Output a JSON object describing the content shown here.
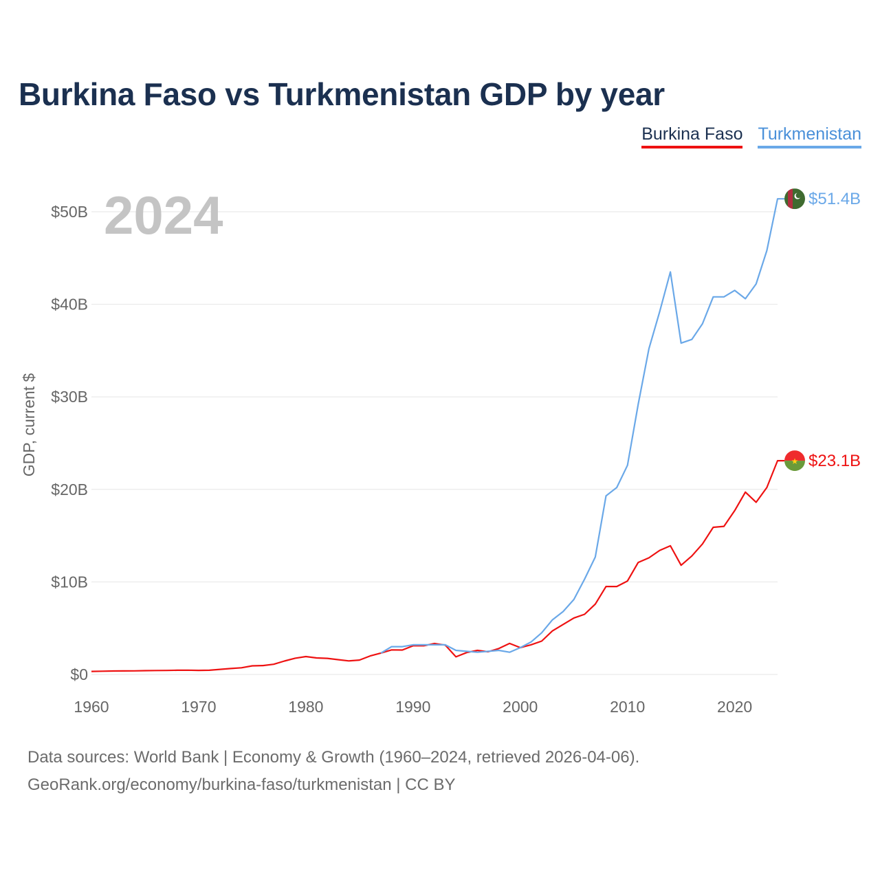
{
  "title": "Burkina Faso vs Turkmenistan GDP by year",
  "legend": {
    "burkina_faso": "Burkina Faso",
    "turkmenistan": "Turkmenistan"
  },
  "footer": {
    "line1": "Data sources: World Bank | Economy & Growth (1960–2024, retrieved 2026-04-06).",
    "line2": "GeoRank.org/economy/burkina-faso/turkmenistan | CC BY"
  },
  "colors": {
    "burkina_faso": "#ee1111",
    "turkmenistan": "#6aa8e8",
    "title": "#1b3050",
    "grid": "#e6e6e6"
  },
  "chart_data": {
    "type": "line",
    "title": "Burkina Faso vs Turkmenistan GDP by year",
    "xlabel": "",
    "ylabel": "GDP, current $",
    "current_year": "2024",
    "xlim": [
      1960,
      2024
    ],
    "ylim": [
      0,
      50
    ],
    "x_ticks": [
      1960,
      1970,
      1980,
      1990,
      2000,
      2010,
      2020
    ],
    "y_ticks": [
      0,
      10,
      20,
      30,
      40,
      50
    ],
    "y_tick_labels": [
      "$0",
      "$10B",
      "$20B",
      "$30B",
      "$40B",
      "$50B"
    ],
    "grid": true,
    "legend_position": "top-right",
    "series": [
      {
        "name": "Burkina Faso",
        "color": "#ee1111",
        "end_label": "$23.1B",
        "flag": "burkina-faso-flag",
        "x": [
          1960,
          1961,
          1962,
          1963,
          1964,
          1965,
          1966,
          1967,
          1968,
          1969,
          1970,
          1971,
          1972,
          1973,
          1974,
          1975,
          1976,
          1977,
          1978,
          1979,
          1980,
          1981,
          1982,
          1983,
          1984,
          1985,
          1986,
          1987,
          1988,
          1989,
          1990,
          1991,
          1992,
          1993,
          1994,
          1995,
          1996,
          1997,
          1998,
          1999,
          2000,
          2001,
          2002,
          2003,
          2004,
          2005,
          2006,
          2007,
          2008,
          2009,
          2010,
          2011,
          2012,
          2013,
          2014,
          2015,
          2016,
          2017,
          2018,
          2019,
          2020,
          2021,
          2022,
          2023,
          2024
        ],
        "values": [
          0.33,
          0.35,
          0.37,
          0.38,
          0.39,
          0.41,
          0.42,
          0.43,
          0.45,
          0.46,
          0.44,
          0.45,
          0.55,
          0.64,
          0.72,
          0.93,
          0.96,
          1.1,
          1.45,
          1.75,
          1.93,
          1.78,
          1.74,
          1.6,
          1.46,
          1.55,
          2.0,
          2.31,
          2.65,
          2.64,
          3.1,
          3.1,
          3.34,
          3.17,
          1.9,
          2.36,
          2.6,
          2.45,
          2.8,
          3.35,
          2.9,
          3.2,
          3.6,
          4.7,
          5.4,
          6.1,
          6.5,
          7.6,
          9.5,
          9.5,
          10.1,
          12.1,
          12.6,
          13.4,
          13.9,
          11.8,
          12.8,
          14.1,
          15.9,
          16.0,
          17.7,
          19.7,
          18.6,
          20.2,
          23.1
        ]
      },
      {
        "name": "Turkmenistan",
        "color": "#6aa8e8",
        "end_label": "$51.4B",
        "flag": "turkmenistan-flag",
        "x": [
          1987,
          1988,
          1989,
          1990,
          1991,
          1992,
          1993,
          1994,
          1995,
          1996,
          1997,
          1998,
          1999,
          2000,
          2001,
          2002,
          2003,
          2004,
          2005,
          2006,
          2007,
          2008,
          2009,
          2010,
          2011,
          2012,
          2013,
          2014,
          2015,
          2016,
          2017,
          2018,
          2019,
          2020,
          2021,
          2022,
          2023,
          2024
        ],
        "values": [
          2.3,
          3.0,
          3.0,
          3.2,
          3.2,
          3.2,
          3.2,
          2.6,
          2.5,
          2.4,
          2.5,
          2.6,
          2.4,
          2.9,
          3.5,
          4.5,
          5.9,
          6.8,
          8.1,
          10.3,
          12.7,
          19.3,
          20.2,
          22.6,
          29.2,
          35.2,
          39.2,
          43.5,
          35.8,
          36.2,
          37.9,
          40.8,
          40.8,
          41.5,
          40.6,
          42.2,
          45.8,
          51.4
        ]
      }
    ]
  }
}
